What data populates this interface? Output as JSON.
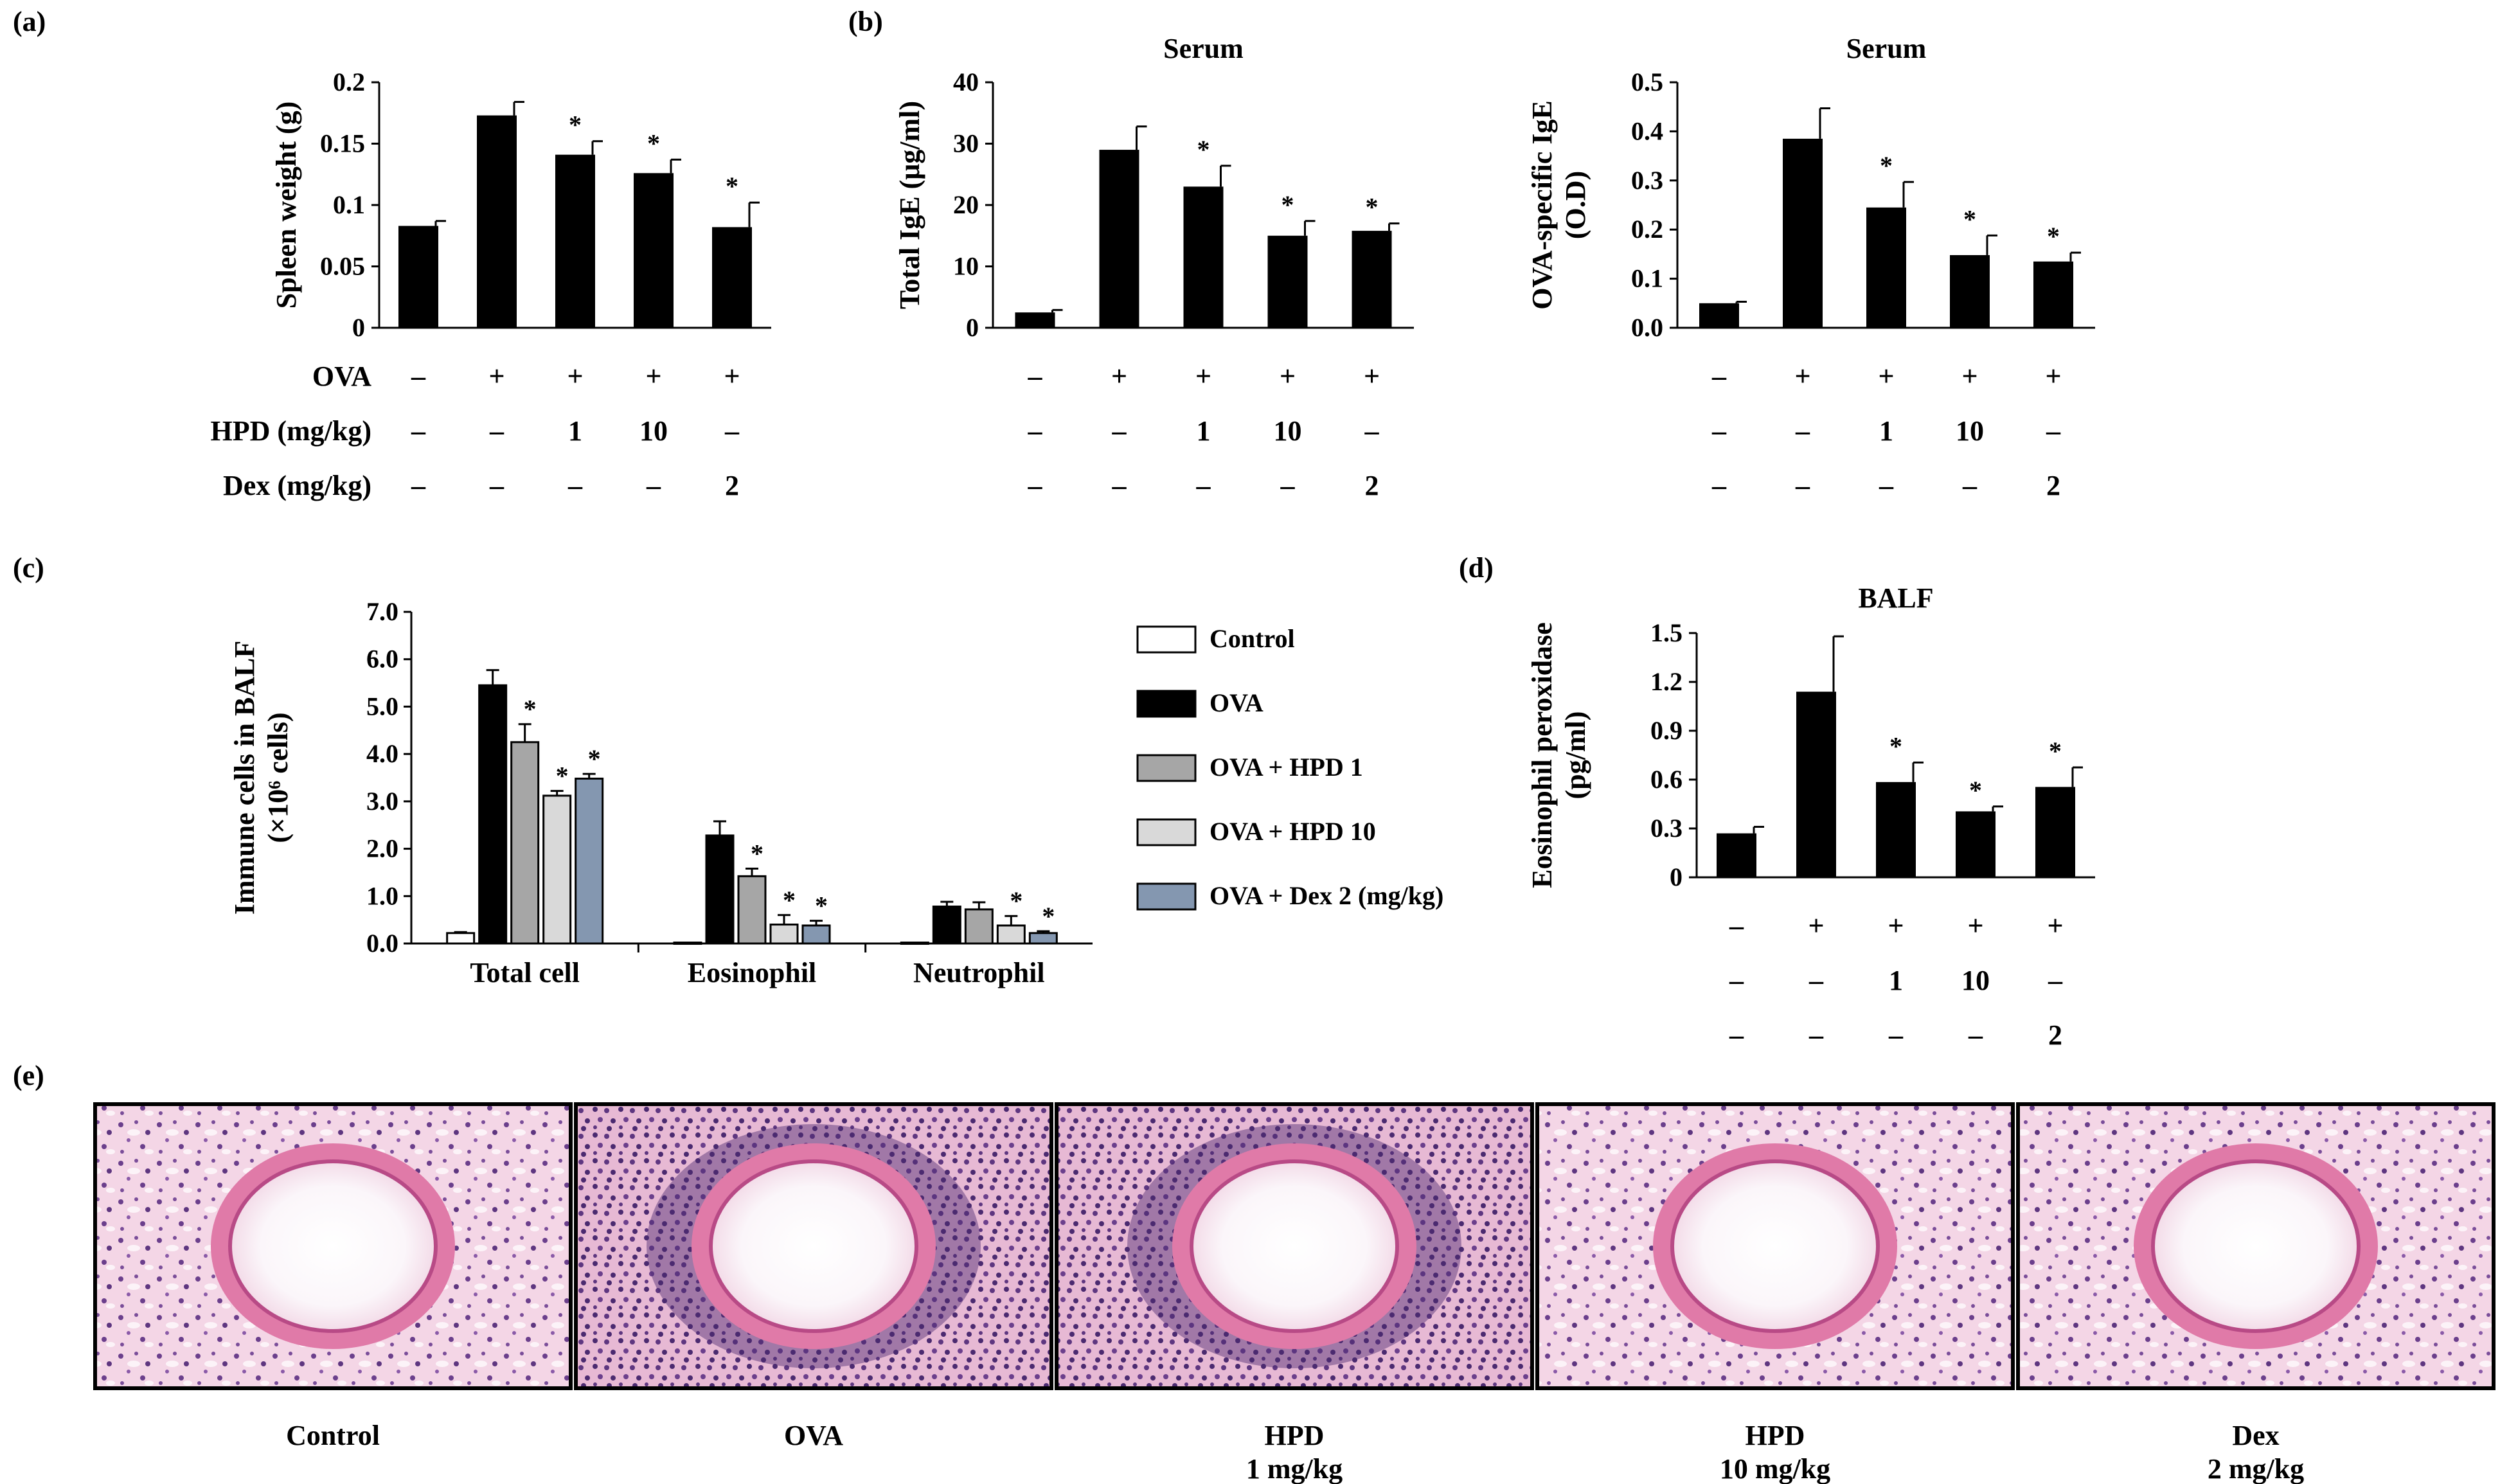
{
  "panel_labels": {
    "a": "(a)",
    "b": "(b)",
    "c": "(c)",
    "d": "(d)",
    "e": "(e)"
  },
  "row_labels": {
    "ova": "OVA",
    "hpd": "HPD (mg/kg)",
    "dex": "Dex (mg/kg)"
  },
  "treatment_table": {
    "ova": [
      "–",
      "+",
      "+",
      "+",
      "+"
    ],
    "hpd": [
      "–",
      "–",
      "1",
      "10",
      "–"
    ],
    "dex": [
      "–",
      "–",
      "–",
      "–",
      "2"
    ]
  },
  "colors": {
    "control": "#ffffff",
    "ova": "#000000",
    "hpd1": "#a6a6a6",
    "hpd10": "#d9d9d9",
    "dex2": "#8497b0"
  },
  "chart_data": [
    {
      "id": "spleen",
      "type": "bar",
      "title": "",
      "ylabel": "Spleen weight (g)",
      "ylim": [
        0,
        0.2
      ],
      "yticks": [
        "0",
        "0.05",
        "0.1",
        "0.15",
        "0.2"
      ],
      "values": [
        0.083,
        0.173,
        0.141,
        0.126,
        0.082
      ],
      "errors": [
        0.004,
        0.011,
        0.011,
        0.011,
        0.02
      ],
      "sig": [
        "",
        "",
        "*",
        "*",
        "*"
      ]
    },
    {
      "id": "total_ige",
      "type": "bar",
      "title": "Serum",
      "ylabel": "Total IgE (μg/ml)",
      "ylim": [
        0,
        40
      ],
      "yticks": [
        "0",
        "10",
        "20",
        "30",
        "40"
      ],
      "values": [
        2.5,
        29,
        23,
        15,
        15.8
      ],
      "errors": [
        0.4,
        3.8,
        3.4,
        2.4,
        1.2
      ],
      "sig": [
        "",
        "",
        "*",
        "*",
        "*"
      ]
    },
    {
      "id": "ova_ige",
      "type": "bar",
      "title": "Serum",
      "ylabel": [
        "OVA-specific IgE",
        "(O.D)"
      ],
      "ylim": [
        0,
        0.5
      ],
      "yticks": [
        "0.0",
        "0.1",
        "0.2",
        "0.3",
        "0.4",
        "0.5"
      ],
      "values": [
        0.05,
        0.385,
        0.245,
        0.148,
        0.135
      ],
      "errors": [
        0.003,
        0.062,
        0.052,
        0.04,
        0.018
      ],
      "sig": [
        "",
        "",
        "*",
        "*",
        "*"
      ]
    },
    {
      "id": "balf_cells",
      "type": "bar",
      "title": "",
      "ylabel": [
        "Immune cells in BALF",
        "(×10⁶ cells)"
      ],
      "ylim": [
        0,
        7
      ],
      "yticks": [
        "0.0",
        "1.0",
        "2.0",
        "3.0",
        "4.0",
        "5.0",
        "6.0",
        "7.0"
      ],
      "categories": [
        "Total cell",
        "Eosinophil",
        "Neutrophil"
      ],
      "series": [
        {
          "name": "Control",
          "values": [
            0.22,
            0.02,
            0.02
          ],
          "errors": [
            0.02,
            0.0,
            0.0
          ],
          "sig": [
            "",
            "",
            ""
          ]
        },
        {
          "name": "OVA",
          "values": [
            5.45,
            2.28,
            0.78
          ],
          "errors": [
            0.32,
            0.3,
            0.1
          ],
          "sig": [
            "",
            "",
            ""
          ]
        },
        {
          "name": "OVA + HPD 1",
          "values": [
            4.25,
            1.42,
            0.72
          ],
          "errors": [
            0.38,
            0.16,
            0.15
          ],
          "sig": [
            "*",
            "*",
            ""
          ]
        },
        {
          "name": "OVA + HPD 10",
          "values": [
            3.12,
            0.4,
            0.38
          ],
          "errors": [
            0.1,
            0.2,
            0.2
          ],
          "sig": [
            "*",
            "*",
            "*"
          ]
        },
        {
          "name": "OVA + Dex 2 (mg/kg)",
          "values": [
            3.48,
            0.38,
            0.22
          ],
          "errors": [
            0.1,
            0.1,
            0.04
          ],
          "sig": [
            "*",
            "*",
            "*"
          ]
        }
      ],
      "legend": "right"
    },
    {
      "id": "epo",
      "type": "bar",
      "title": "BALF",
      "ylabel": [
        "Eosinophil peroxidase",
        "(pg/ml)"
      ],
      "ylim": [
        0,
        1.5
      ],
      "yticks": [
        "0",
        "0.3",
        "0.6",
        "0.9",
        "1.2",
        "1.5"
      ],
      "values": [
        0.27,
        1.14,
        0.585,
        0.405,
        0.555
      ],
      "errors": [
        0.04,
        0.34,
        0.12,
        0.03,
        0.12
      ],
      "sig": [
        "",
        "",
        "*",
        "*",
        "*"
      ]
    }
  ],
  "histology": {
    "captions": [
      [
        "Control"
      ],
      [
        "OVA"
      ],
      [
        "HPD",
        "1 mg/kg"
      ],
      [
        "HPD",
        "10 mg/kg"
      ],
      [
        "Dex",
        "2 mg/kg"
      ]
    ]
  }
}
